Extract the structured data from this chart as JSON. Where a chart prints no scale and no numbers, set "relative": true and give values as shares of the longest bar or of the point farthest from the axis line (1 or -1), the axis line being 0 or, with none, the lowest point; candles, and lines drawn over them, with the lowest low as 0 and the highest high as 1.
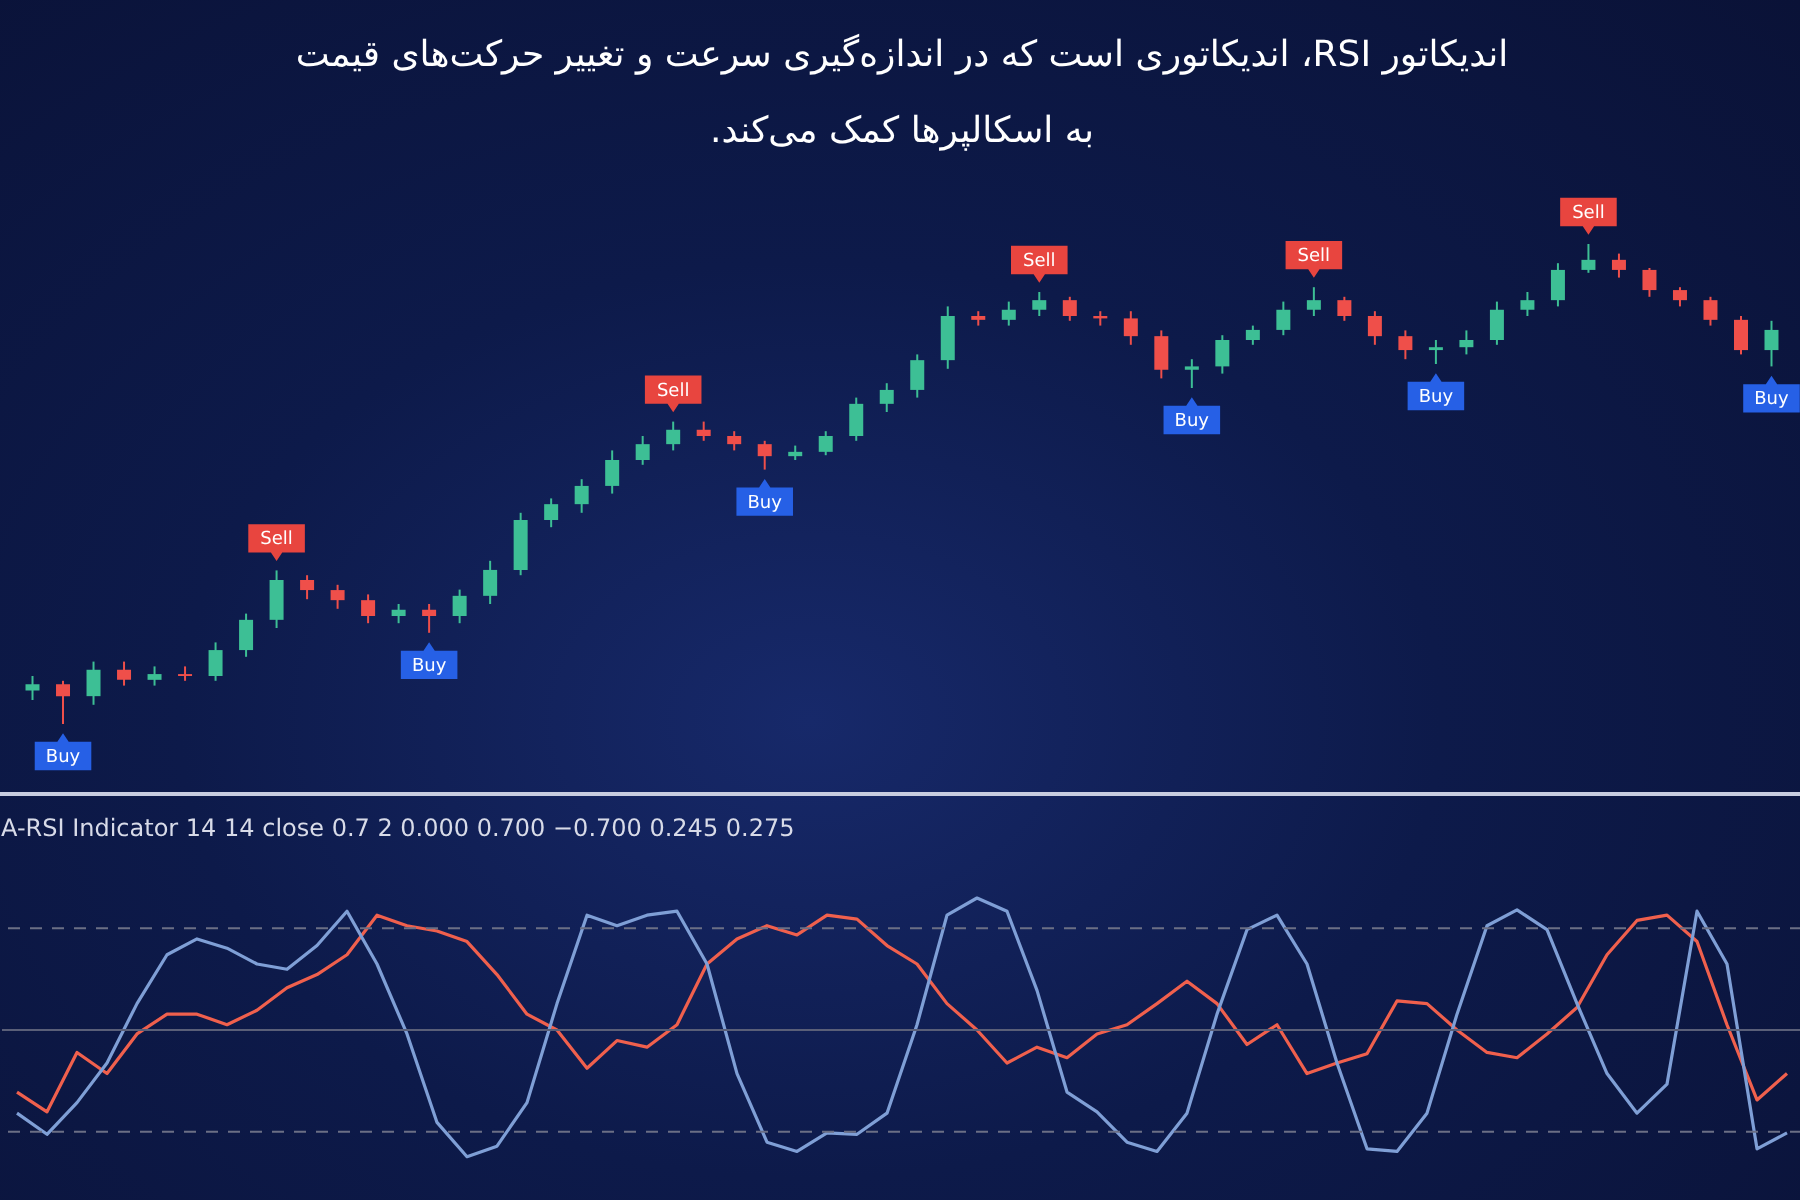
{
  "chart_data": [
    {
      "type": "candlestick",
      "title": "اندیکاتور RSI، اندیکاتوری است که در اندازه‌گیری سرعت و تغییر حرکت‌های قیمت\nبه اسکالپرها کمک می‌کند.",
      "relative": true,
      "categories": [
        null,
        null,
        null,
        null,
        null,
        null,
        null,
        null,
        null,
        null,
        null,
        null,
        null,
        null,
        null,
        null,
        null,
        null,
        null,
        null,
        null,
        null,
        null,
        null,
        null,
        null,
        null,
        null,
        null,
        null,
        null,
        null,
        null,
        null,
        null,
        null,
        null,
        null,
        null,
        null,
        null,
        null,
        null,
        null,
        null,
        null,
        null,
        null,
        null,
        null,
        null,
        null,
        null,
        null,
        null,
        null,
        null,
        null
      ],
      "ohlc": [
        [
          0.07,
          0.1,
          0.05,
          0.083
        ],
        [
          0.083,
          0.09,
          0,
          0.058
        ],
        [
          0.058,
          0.13,
          0.04,
          0.113
        ],
        [
          0.113,
          0.13,
          0.08,
          0.092
        ],
        [
          0.092,
          0.12,
          0.08,
          0.104
        ],
        [
          0.104,
          0.12,
          0.09,
          0.1
        ],
        [
          0.1,
          0.17,
          0.09,
          0.154
        ],
        [
          0.154,
          0.23,
          0.14,
          0.217
        ],
        [
          0.217,
          0.32,
          0.2,
          0.3
        ],
        [
          0.3,
          0.31,
          0.26,
          0.279
        ],
        [
          0.279,
          0.29,
          0.24,
          0.258
        ],
        [
          0.258,
          0.27,
          0.21,
          0.225
        ],
        [
          0.225,
          0.25,
          0.21,
          0.238
        ],
        [
          0.238,
          0.25,
          0.19,
          0.225
        ],
        [
          0.225,
          0.28,
          0.21,
          0.267
        ],
        [
          0.267,
          0.34,
          0.25,
          0.321
        ],
        [
          0.321,
          0.44,
          0.31,
          0.425
        ],
        [
          0.425,
          0.47,
          0.41,
          0.458
        ],
        [
          0.458,
          0.51,
          0.44,
          0.496
        ],
        [
          0.496,
          0.57,
          0.48,
          0.55
        ],
        [
          0.55,
          0.6,
          0.54,
          0.583
        ],
        [
          0.583,
          0.63,
          0.57,
          0.613
        ],
        [
          0.613,
          0.63,
          0.59,
          0.6
        ],
        [
          0.6,
          0.61,
          0.57,
          0.583
        ],
        [
          0.583,
          0.59,
          0.53,
          0.558
        ],
        [
          0.558,
          0.58,
          0.55,
          0.567
        ],
        [
          0.567,
          0.61,
          0.56,
          0.6
        ],
        [
          0.6,
          0.68,
          0.59,
          0.667
        ],
        [
          0.667,
          0.71,
          0.65,
          0.696
        ],
        [
          0.696,
          0.77,
          0.68,
          0.758
        ],
        [
          0.758,
          0.87,
          0.74,
          0.85
        ],
        [
          0.85,
          0.86,
          0.83,
          0.842
        ],
        [
          0.842,
          0.88,
          0.83,
          0.863
        ],
        [
          0.863,
          0.9,
          0.85,
          0.883
        ],
        [
          0.883,
          0.89,
          0.84,
          0.85
        ],
        [
          0.85,
          0.86,
          0.83,
          0.845
        ],
        [
          0.845,
          0.86,
          0.79,
          0.808
        ],
        [
          0.808,
          0.82,
          0.72,
          0.738
        ],
        [
          0.738,
          0.76,
          0.7,
          0.745
        ],
        [
          0.745,
          0.81,
          0.73,
          0.8
        ],
        [
          0.8,
          0.83,
          0.79,
          0.821
        ],
        [
          0.821,
          0.88,
          0.81,
          0.863
        ],
        [
          0.863,
          0.91,
          0.85,
          0.883
        ],
        [
          0.883,
          0.89,
          0.84,
          0.85
        ],
        [
          0.85,
          0.86,
          0.79,
          0.808
        ],
        [
          0.808,
          0.82,
          0.76,
          0.779
        ],
        [
          0.779,
          0.8,
          0.75,
          0.785
        ],
        [
          0.785,
          0.82,
          0.77,
          0.8
        ],
        [
          0.8,
          0.88,
          0.79,
          0.863
        ],
        [
          0.863,
          0.9,
          0.85,
          0.883
        ],
        [
          0.883,
          0.96,
          0.87,
          0.946
        ],
        [
          0.946,
          1,
          0.94,
          0.967
        ],
        [
          0.967,
          0.98,
          0.93,
          0.946
        ],
        [
          0.946,
          0.95,
          0.89,
          0.904
        ],
        [
          0.904,
          0.91,
          0.87,
          0.883
        ],
        [
          0.883,
          0.89,
          0.83,
          0.842
        ],
        [
          0.842,
          0.85,
          0.77,
          0.779
        ],
        [
          0.779,
          0.84,
          0.745,
          0.821
        ]
      ],
      "annotations": [
        {
          "text": "Buy",
          "y": 0
        },
        {
          "text": "Sell",
          "y": 0.32
        },
        {
          "text": "Buy",
          "y": 0.19
        },
        {
          "text": "Sell",
          "y": 0.63
        },
        {
          "text": "Buy",
          "y": 0.53
        },
        {
          "text": "Sell",
          "y": 0.9
        },
        {
          "text": "Buy",
          "y": 0.7
        },
        {
          "text": "Sell",
          "y": 0.91
        },
        {
          "text": "Buy",
          "y": 0.75
        },
        {
          "text": "Sell",
          "y": 1
        },
        {
          "text": "Buy",
          "y": 0.745
        }
      ]
    },
    {
      "type": "line",
      "title": "A-RSI Indicator 14 14 close 0.7 2  0.000  0.700  −0.700  0.245  0.275",
      "relative": true,
      "categories": [
        null,
        null,
        null,
        null,
        null,
        null,
        null,
        null,
        null,
        null,
        null,
        null,
        null,
        null,
        null,
        null,
        null,
        null,
        null,
        null,
        null,
        null,
        null,
        null,
        null,
        null,
        null,
        null,
        null,
        null,
        null,
        null,
        null,
        null,
        null,
        null,
        null,
        null,
        null,
        null,
        null,
        null,
        null,
        null,
        null,
        null,
        null,
        null,
        null,
        null,
        null,
        null,
        null,
        null,
        null,
        null,
        null,
        null,
        null,
        null
      ],
      "series": [
        {
          "color": "#f0604d",
          "values": [
            -0.47,
            -0.62,
            -0.17,
            -0.33,
            -0.03,
            0.12,
            0.12,
            0.04,
            0.15,
            0.32,
            0.42,
            0.57,
            0.87,
            0.79,
            0.75,
            0.67,
            0.42,
            0.12,
            0,
            -0.29,
            -0.08,
            -0.13,
            0.04,
            0.5,
            0.69,
            0.79,
            0.72,
            0.87,
            0.84,
            0.64,
            0.5,
            0.2,
            0,
            -0.25,
            -0.13,
            -0.21,
            -0.03,
            0.04,
            0.2,
            0.37,
            0.2,
            -0.11,
            0.04,
            -0.33,
            -0.25,
            -0.18,
            0.22,
            0.2,
            0,
            -0.17,
            -0.21,
            -0.03,
            0.17,
            0.57,
            0.83,
            0.87,
            0.67,
            0.04,
            -0.53,
            -0.33
          ]
        },
        {
          "color": "#7f9fd6",
          "values": [
            -0.63,
            -0.79,
            -0.55,
            -0.25,
            0.2,
            0.57,
            0.69,
            0.62,
            0.5,
            0.46,
            0.64,
            0.9,
            0.5,
            -0.03,
            -0.7,
            -0.96,
            -0.88,
            -0.55,
            0.2,
            0.87,
            0.79,
            0.87,
            0.9,
            0.5,
            -0.33,
            -0.85,
            -0.92,
            -0.78,
            -0.79,
            -0.63,
            0.04,
            0.87,
            1,
            0.9,
            0.3,
            -0.47,
            -0.62,
            -0.85,
            -0.92,
            -0.63,
            0.12,
            0.76,
            0.87,
            0.5,
            -0.25,
            -0.9,
            -0.92,
            -0.63,
            0.12,
            0.79,
            0.91,
            0.76,
            0.2,
            -0.33,
            -0.63,
            -0.41,
            0.9,
            0.5,
            -0.9,
            -0.78
          ]
        }
      ],
      "ref_lines": [
        {
          "axis": "y",
          "value": 0.77,
          "color": "#6b6f85",
          "line_style": "dashed"
        },
        {
          "axis": "y",
          "value": 0,
          "color": "#5a5f78",
          "line_style": "solid"
        },
        {
          "axis": "y",
          "value": -0.77,
          "color": "#6b6f85",
          "line_style": "dashed"
        }
      ]
    }
  ]
}
